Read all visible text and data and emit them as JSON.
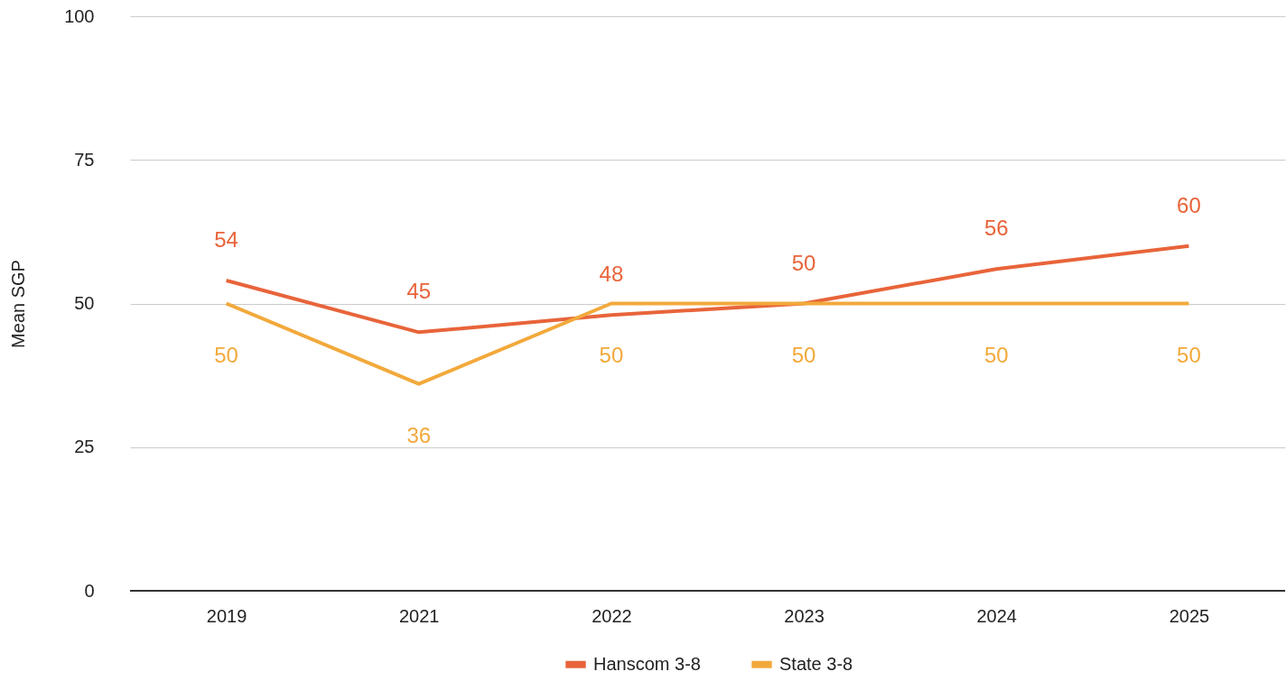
{
  "chart_data": {
    "type": "line",
    "ylabel": "Mean SGP",
    "categories": [
      "2019",
      "2021",
      "2022",
      "2023",
      "2024",
      "2025"
    ],
    "series": [
      {
        "name": "Hanscom 3-8",
        "color": "#e8643a",
        "values": [
          54,
          45,
          48,
          50,
          56,
          60
        ]
      },
      {
        "name": "State 3-8",
        "color": "#f2a93b",
        "values": [
          50,
          36,
          50,
          50,
          50,
          50
        ]
      }
    ],
    "ylim": [
      0,
      100
    ],
    "yticks": [
      0,
      25,
      50,
      75,
      100
    ],
    "grid": "y",
    "legend": "bottom",
    "data_labels": true,
    "marker": "none",
    "line_style": "solid"
  }
}
